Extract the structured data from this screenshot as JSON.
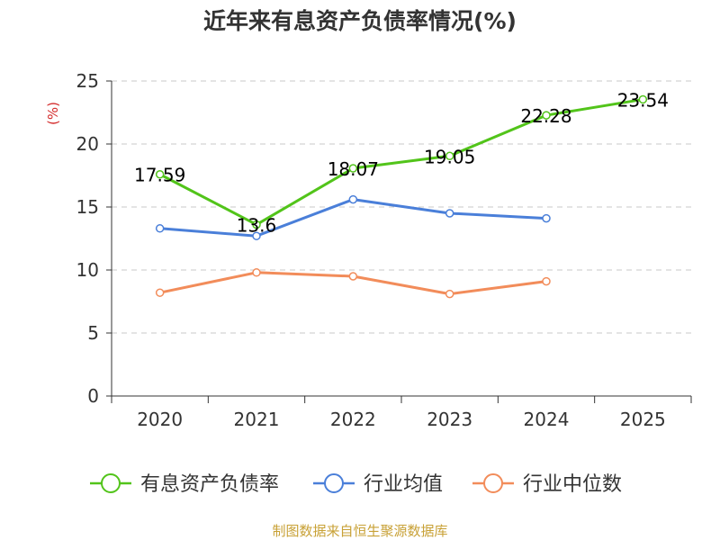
{
  "chart_data": {
    "type": "line",
    "title": "近年来有息资产负债率情况(%)",
    "ylabel": "(%)",
    "categories": [
      "2020",
      "2021",
      "2022",
      "2023",
      "2024",
      "2025"
    ],
    "ylim": [
      0,
      25
    ],
    "yticks": [
      0,
      5,
      10,
      15,
      20,
      25
    ],
    "grid": true,
    "legend_position": "bottom",
    "series": [
      {
        "name": "有息资产负债率",
        "color": "#52c41a",
        "values": [
          17.59,
          13.6,
          18.07,
          19.05,
          22.28,
          23.54
        ],
        "labels": [
          "17.59",
          "13.6",
          "18.07",
          "19.05",
          "22.28",
          "23.54"
        ]
      },
      {
        "name": "行业均值",
        "color": "#4a7fd9",
        "values": [
          13.3,
          12.7,
          15.6,
          14.5,
          14.1,
          null
        ]
      },
      {
        "name": "行业中位数",
        "color": "#f28c5a",
        "values": [
          8.2,
          9.8,
          9.5,
          8.1,
          9.1,
          null
        ]
      }
    ],
    "source": "制图数据来自恒生聚源数据库",
    "source_color": "#c8a136",
    "ylabel_color": "#d42c2c"
  }
}
